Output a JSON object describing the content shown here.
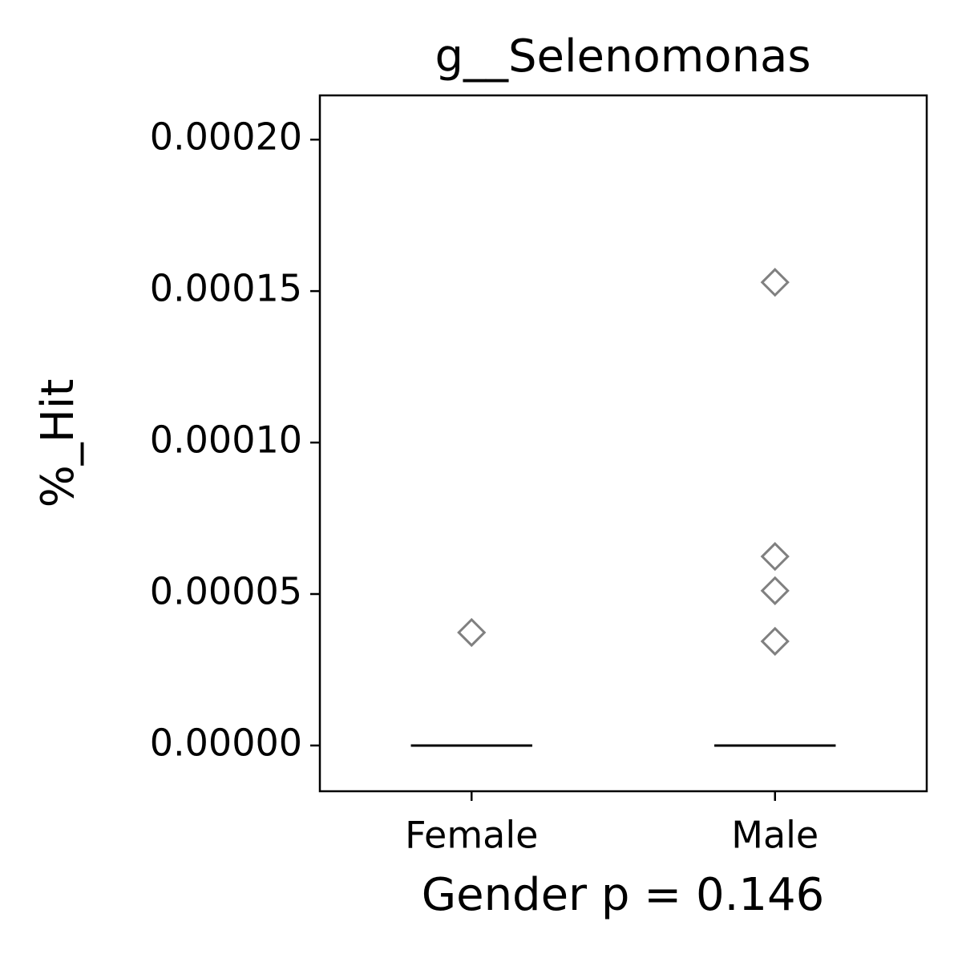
{
  "chart_data": {
    "type": "box",
    "title": "g__Selenomonas",
    "x_label": "Gender p = 0.146",
    "y_label": "%_Hit",
    "categories": [
      "Female",
      "Male"
    ],
    "median": [
      0,
      0
    ],
    "outliers": [
      [
        3.73e-05
      ],
      [
        0.0001529,
        6.24e-05,
        5.11e-05,
        3.44e-05
      ]
    ],
    "median_color": "#000000",
    "outlier_color": "#808080",
    "ylim": [
      -1.51e-05,
      0.0002146
    ],
    "yticks": [
      {
        "value": 0,
        "label": "0.00000"
      },
      {
        "value": 5e-05,
        "label": "0.00005"
      },
      {
        "value": 0.0001,
        "label": "0.00010"
      },
      {
        "value": 0.00015,
        "label": "0.00015"
      },
      {
        "value": 0.0002,
        "label": "0.00020"
      }
    ]
  }
}
